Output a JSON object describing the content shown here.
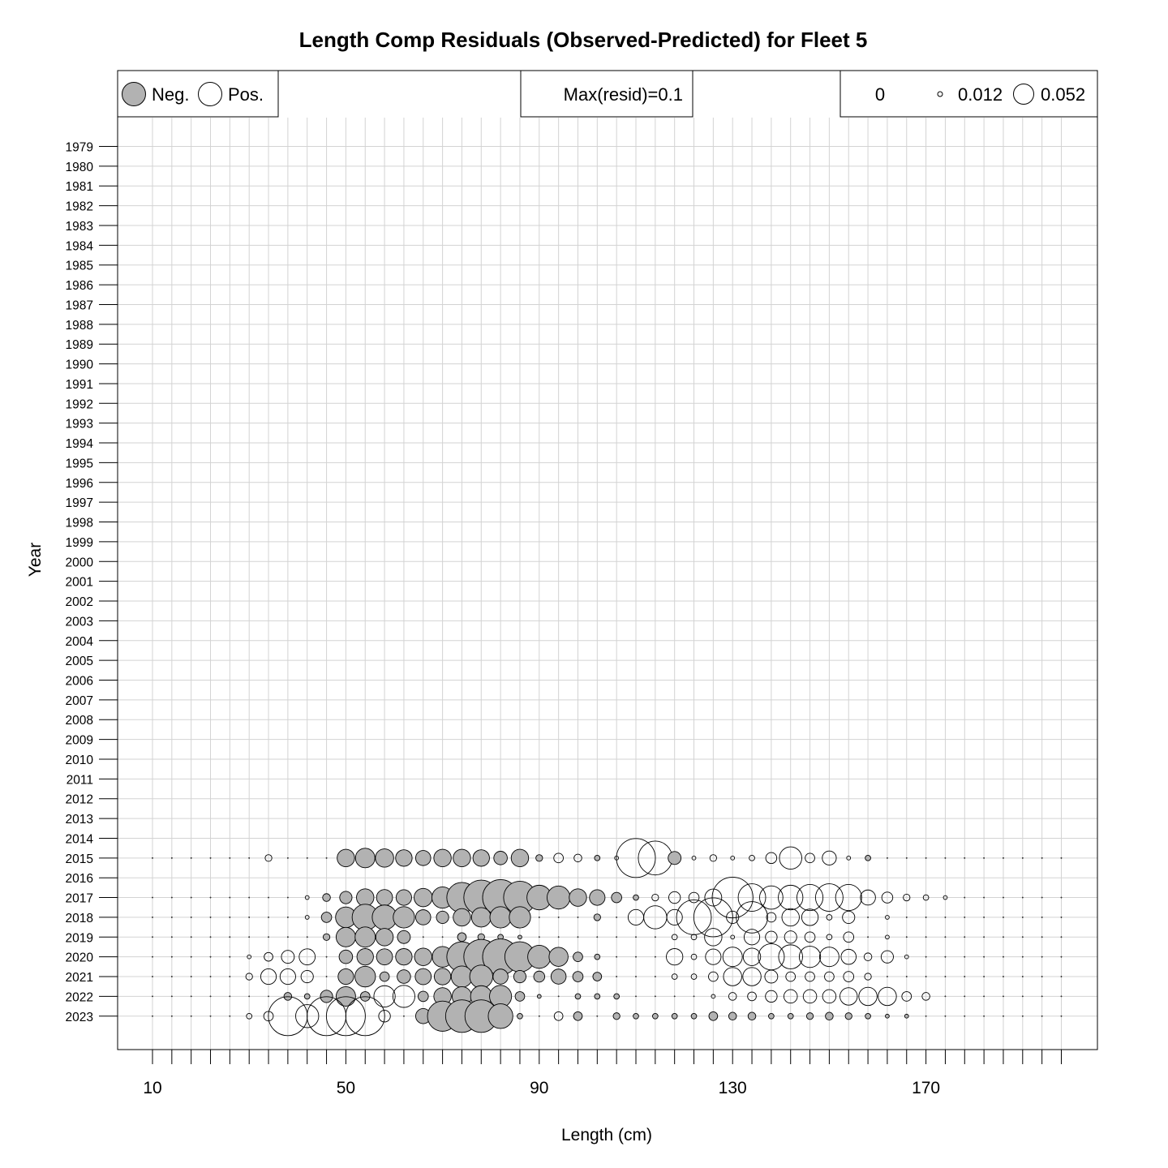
{
  "chart_data": {
    "type": "scatter",
    "title": "Length Comp Residuals (Observed-Predicted) for Fleet 5",
    "xlabel": "Length (cm)",
    "ylabel": "Year",
    "x_ticks": [
      10,
      50,
      90,
      130,
      170
    ],
    "xlim": [
      3,
      206
    ],
    "years": [
      1979,
      1980,
      1981,
      1982,
      1983,
      1984,
      1985,
      1986,
      1987,
      1988,
      1989,
      1990,
      1991,
      1992,
      1993,
      1994,
      1995,
      1996,
      1997,
      1998,
      1999,
      2000,
      2001,
      2002,
      2003,
      2004,
      2005,
      2006,
      2007,
      2008,
      2009,
      2010,
      2011,
      2012,
      2013,
      2014,
      2015,
      2016,
      2017,
      2018,
      2019,
      2020,
      2021,
      2022,
      2023
    ],
    "length_bins": [
      10,
      14,
      18,
      22,
      26,
      30,
      34,
      38,
      42,
      46,
      50,
      54,
      58,
      62,
      66,
      70,
      74,
      78,
      82,
      86,
      90,
      94,
      98,
      102,
      106,
      110,
      114,
      118,
      122,
      126,
      130,
      134,
      138,
      142,
      146,
      150,
      154,
      158,
      162,
      166,
      170,
      174,
      178,
      182,
      186,
      190,
      194,
      198
    ],
    "grid": true,
    "legend": {
      "neg_label": "Neg.",
      "pos_label": "Pos.",
      "max_label": "Max(resid)=0.1",
      "size_labels": [
        "0",
        "0.012",
        "0.052"
      ],
      "size_values": [
        0,
        0.012,
        0.052
      ]
    },
    "max_resid": 0.1,
    "series": [
      {
        "year": 2015,
        "residuals": [
          0,
          0,
          0,
          0,
          0,
          0,
          0.003,
          0,
          0,
          0,
          -0.02,
          -0.025,
          -0.022,
          -0.018,
          -0.015,
          -0.02,
          -0.02,
          -0.018,
          -0.012,
          -0.02,
          -0.003,
          0.006,
          0.004,
          -0.002,
          0.001,
          0.1,
          0.076,
          -0.011,
          0.001,
          0.003,
          0.001,
          0.002,
          0.008,
          0.033,
          0.006,
          0.013,
          0.001,
          -0.002,
          0,
          0,
          0,
          0,
          0,
          0,
          0,
          0,
          0,
          0
        ]
      },
      {
        "year": 2017,
        "residuals": [
          0,
          0,
          0,
          0,
          0,
          0,
          0,
          0,
          0.001,
          -0.004,
          -0.01,
          -0.02,
          -0.017,
          -0.016,
          -0.022,
          -0.03,
          -0.06,
          -0.08,
          -0.085,
          -0.07,
          -0.04,
          -0.035,
          -0.02,
          -0.016,
          -0.007,
          -0.002,
          0.003,
          0.009,
          0.007,
          0.019,
          0.11,
          0.05,
          0.036,
          0.04,
          0.045,
          0.05,
          0.045,
          0.015,
          0.008,
          0.003,
          0.002,
          0.001,
          0,
          0,
          0,
          0,
          0,
          0
        ]
      },
      {
        "year": 2018,
        "residuals": [
          0,
          0,
          0,
          0,
          0,
          0,
          0,
          0,
          0.001,
          -0.007,
          -0.028,
          -0.045,
          -0.04,
          -0.03,
          -0.015,
          -0.01,
          -0.02,
          -0.025,
          -0.03,
          -0.03,
          0,
          0,
          0,
          -0.003,
          0,
          0.016,
          0.035,
          0.016,
          0.08,
          0.1,
          0.01,
          0.065,
          0.006,
          0.02,
          0.018,
          0.002,
          0.01,
          0,
          0.001,
          0,
          0,
          0,
          0,
          0,
          0,
          0,
          0,
          0
        ]
      },
      {
        "year": 2019,
        "residuals": [
          0,
          0,
          0,
          0,
          0,
          0,
          0,
          0,
          0,
          -0.003,
          -0.025,
          -0.027,
          -0.02,
          -0.011,
          0,
          0,
          -0.005,
          -0.003,
          -0.002,
          -0.001,
          0,
          0,
          0,
          0,
          0,
          0,
          0,
          0.002,
          0.002,
          0.02,
          0.001,
          0.016,
          0.009,
          0.01,
          0.007,
          0.002,
          0.007,
          0,
          0.001,
          0,
          0,
          0,
          0,
          0,
          0,
          0,
          0,
          0
        ]
      },
      {
        "year": 2020,
        "residuals": [
          0,
          0,
          0,
          0,
          0,
          0.001,
          0.005,
          0.011,
          0.017,
          0,
          -0.012,
          -0.018,
          -0.017,
          -0.018,
          -0.02,
          -0.028,
          -0.06,
          -0.08,
          -0.085,
          -0.06,
          -0.035,
          -0.024,
          -0.006,
          -0.002,
          0,
          0,
          0,
          0.018,
          0.002,
          0.016,
          0.025,
          0.02,
          0.045,
          0.038,
          0.03,
          0.025,
          0.015,
          0.004,
          0.01,
          0.001,
          0,
          0,
          0,
          0,
          0,
          0,
          0,
          0
        ]
      },
      {
        "year": 2021,
        "residuals": [
          0,
          0,
          0,
          0,
          0,
          0.003,
          0.016,
          0.016,
          0.01,
          0,
          -0.016,
          -0.028,
          -0.006,
          -0.012,
          -0.017,
          -0.018,
          -0.03,
          -0.035,
          -0.015,
          -0.01,
          -0.008,
          -0.015,
          -0.007,
          -0.005,
          0,
          0,
          0,
          0.002,
          0.002,
          0.006,
          0.022,
          0.022,
          0.011,
          0.006,
          0.006,
          0.006,
          0.007,
          0.003,
          0,
          0,
          0,
          0,
          0,
          0,
          0,
          0,
          0,
          0
        ]
      },
      {
        "year": 2022,
        "residuals": [
          0,
          0,
          0,
          0,
          0,
          0,
          0,
          -0.004,
          -0.002,
          -0.01,
          -0.025,
          -0.006,
          0.03,
          0.032,
          -0.007,
          -0.02,
          -0.025,
          -0.03,
          -0.032,
          -0.006,
          -0.001,
          0,
          -0.002,
          -0.002,
          -0.002,
          0,
          0,
          0,
          0,
          0.001,
          0.004,
          0.005,
          0.009,
          0.012,
          0.012,
          0.012,
          0.02,
          0.022,
          0.022,
          0.006,
          0.004,
          0,
          0,
          0,
          0,
          0,
          0,
          0
        ]
      },
      {
        "year": 2023,
        "residuals": [
          0,
          0,
          0,
          0,
          0,
          0.002,
          0.006,
          0.1,
          0.035,
          0.1,
          0.1,
          0.1,
          0.009,
          0,
          -0.015,
          -0.06,
          -0.07,
          -0.07,
          -0.04,
          -0.002,
          0,
          0.005,
          -0.005,
          0,
          -0.003,
          -0.002,
          -0.002,
          -0.002,
          -0.002,
          -0.005,
          -0.004,
          -0.004,
          -0.002,
          -0.002,
          -0.003,
          -0.004,
          -0.003,
          -0.002,
          -0.001,
          -0.001,
          0,
          0,
          0,
          0,
          0,
          0,
          0,
          0
        ]
      }
    ]
  }
}
